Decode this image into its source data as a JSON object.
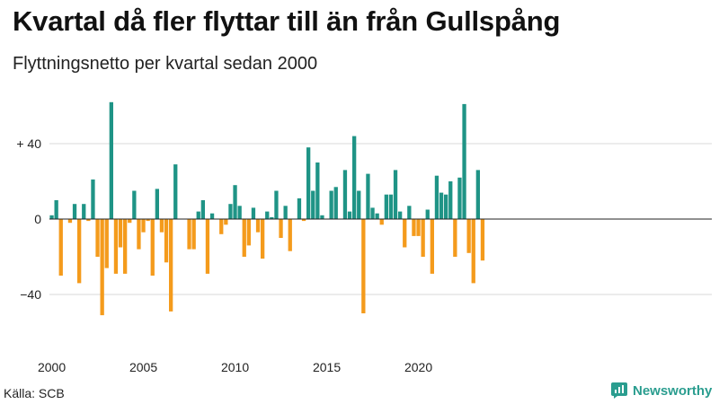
{
  "title": "Kvartal då fler flyttar till än från Gullspång",
  "subtitle": "Flyttningsnetto per kvartal sedan 2000",
  "source": "Källa: SCB",
  "brand": "Newsworthy",
  "colors": {
    "positive": "#1f9486",
    "negative": "#f49b1c",
    "zero_line": "#222222",
    "grid": "#d9d9d9",
    "brand": "#2a9d8f"
  },
  "chart_data": {
    "type": "bar",
    "x_start": "2000 Q1",
    "ylim": [
      -55,
      65
    ],
    "y_ticks": [
      {
        "value": 40,
        "label": "+ 40"
      },
      {
        "value": 0,
        "label": "0"
      },
      {
        "value": -40,
        "label": "−40"
      }
    ],
    "x_ticks": [
      "2000",
      "2005",
      "2010",
      "2015",
      "2020"
    ],
    "grid": true,
    "values": [
      2,
      10,
      -30,
      0,
      -2,
      8,
      -34,
      8,
      -1,
      21,
      -20,
      -51,
      -26,
      62,
      -29,
      -15,
      -29,
      -2,
      15,
      -16,
      -7,
      -1,
      -30,
      16,
      -7,
      -23,
      -49,
      29,
      0,
      0,
      -16,
      -16,
      4,
      10,
      -29,
      3,
      0,
      -8,
      -3,
      8,
      18,
      7,
      -20,
      -14,
      6,
      -7,
      -21,
      4,
      1,
      15,
      -10,
      7,
      -17,
      0,
      11,
      -1,
      38,
      15,
      30,
      2,
      0,
      15,
      17,
      0,
      26,
      4,
      44,
      15,
      -50,
      24,
      6,
      3,
      -3,
      13,
      13,
      26,
      4,
      -15,
      7,
      -9,
      -9,
      -20,
      5,
      -29,
      23,
      14,
      13,
      20,
      -20,
      22,
      61,
      -18,
      -34,
      26,
      -22
    ]
  }
}
